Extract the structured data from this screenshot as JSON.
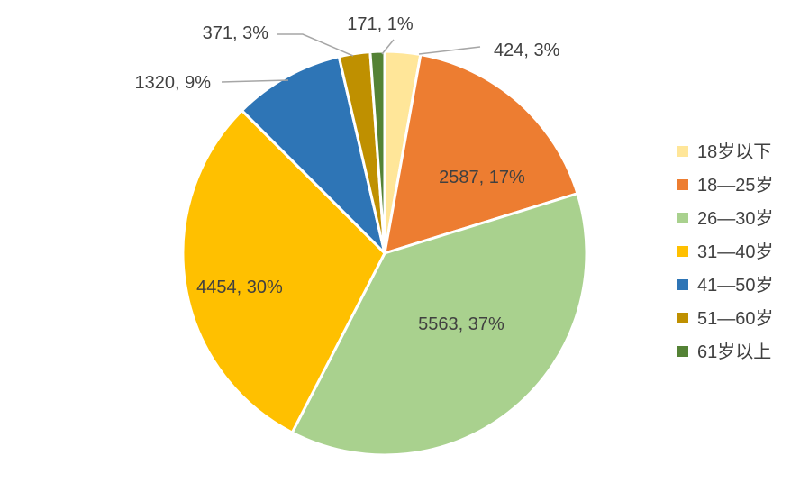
{
  "chart_data": {
    "type": "pie",
    "categories": [
      "18岁以下",
      "18—25岁",
      "26—30岁",
      "31—40岁",
      "41—50岁",
      "51—60岁",
      "61岁以上"
    ],
    "values": [
      424,
      2587,
      5563,
      4454,
      1320,
      371,
      171
    ],
    "data_labels": [
      "424, 3%",
      "2587, 17%",
      "5563, 37%",
      "4454, 30%",
      "1320, 9%",
      "371, 3%",
      "171, 1%"
    ],
    "colors": [
      "#FFE699",
      "#ED7D31",
      "#A9D18E",
      "#FFC000",
      "#2E75B6",
      "#BF9000",
      "#548235"
    ],
    "legend_position": "right",
    "title": ""
  }
}
